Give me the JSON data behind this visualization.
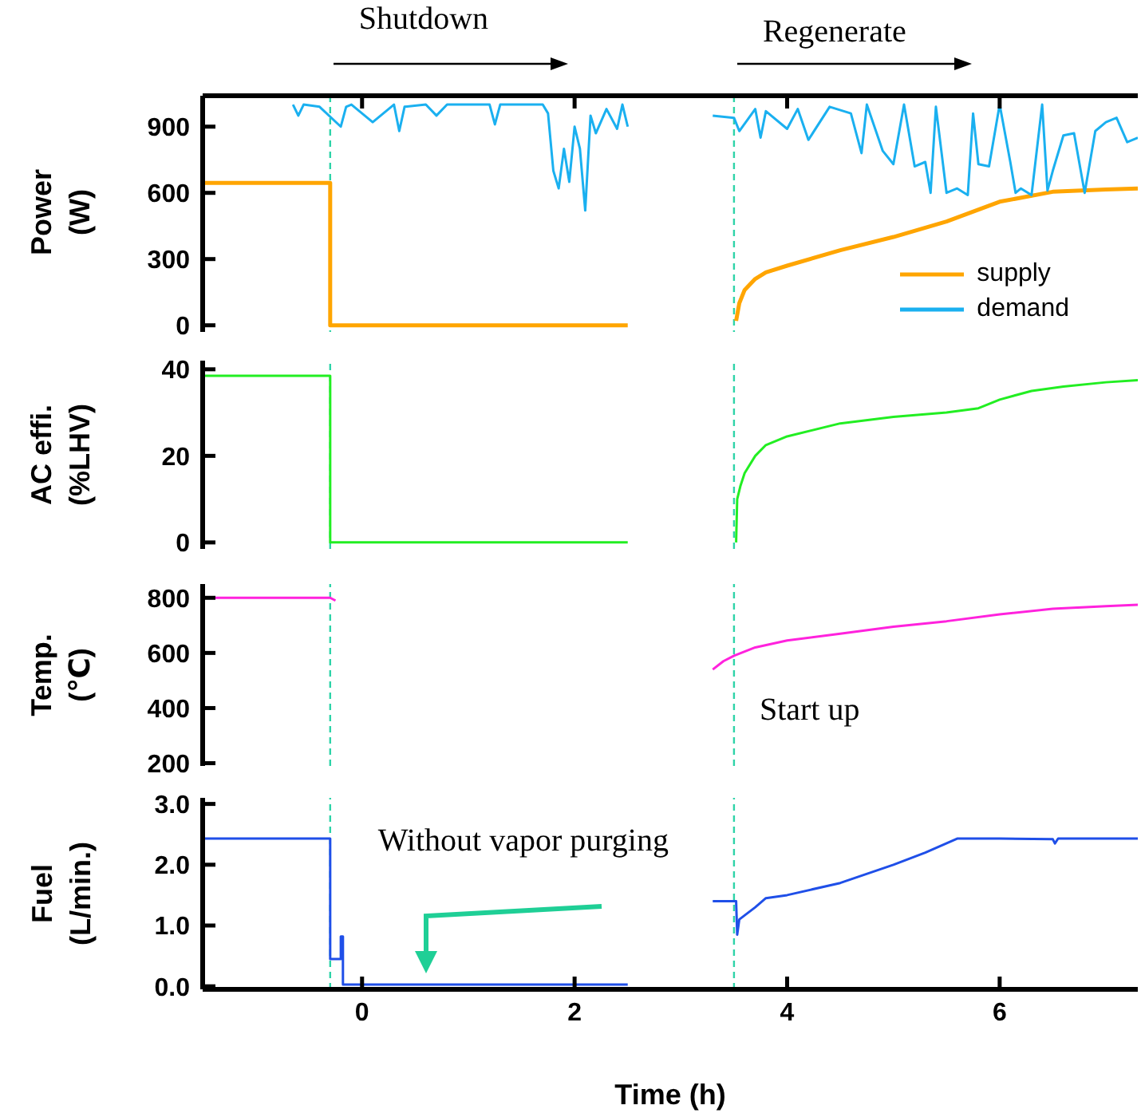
{
  "chart_data": [
    {
      "type": "line",
      "ylabel": "Power\n(W)",
      "xlim": [
        -1.5,
        7.3
      ],
      "xticks": [
        0,
        2,
        4,
        6
      ],
      "ylim": [
        -30,
        1040
      ],
      "yticks": [
        0,
        300,
        600,
        900
      ],
      "tick_labels": "y",
      "legend": "bottom right",
      "annotations": [
        "Shutdown",
        "Regenerate"
      ],
      "ref_lines": [
        {
          "axis": "x",
          "value": -0.3,
          "color": "#2ed3a8",
          "line_style": "dashed"
        },
        {
          "axis": "x",
          "value": 3.5,
          "color": "#2ed3a8",
          "line_style": "dashed"
        }
      ],
      "series": [
        {
          "name": "supply",
          "color": "#ffa500",
          "x": [
            -1.5,
            -0.3,
            -0.3,
            2.5,
            2.9,
            3.52,
            3.55,
            3.6,
            3.7,
            3.8,
            4.0,
            4.5,
            5.0,
            5.5,
            6.0,
            6.5,
            7.0,
            7.3
          ],
          "values": [
            645,
            645,
            0,
            0,
            null,
            20,
            100,
            160,
            210,
            240,
            270,
            340,
            400,
            470,
            560,
            605,
            615,
            620
          ]
        },
        {
          "name": "demand",
          "color": "#1ab0f0",
          "x": [
            -0.65,
            -0.6,
            -0.55,
            -0.4,
            -0.2,
            -0.15,
            -0.1,
            0.1,
            0.3,
            0.35,
            0.4,
            0.6,
            0.7,
            0.8,
            1.0,
            1.2,
            1.25,
            1.3,
            1.5,
            1.7,
            1.75,
            1.8,
            1.85,
            1.9,
            1.95,
            2.0,
            2.05,
            2.1,
            2.15,
            2.2,
            2.3,
            2.4,
            2.45,
            2.5,
            2.9,
            3.3,
            3.5,
            3.55,
            3.7,
            3.75,
            3.8,
            4.0,
            4.1,
            4.2,
            4.4,
            4.6,
            4.7,
            4.75,
            4.9,
            5.0,
            5.1,
            5.2,
            5.3,
            5.35,
            5.4,
            5.5,
            5.6,
            5.7,
            5.75,
            5.8,
            5.9,
            6.0,
            6.1,
            6.15,
            6.2,
            6.3,
            6.4,
            6.45,
            6.5,
            6.6,
            6.7,
            6.8,
            6.9,
            7.0,
            7.1,
            7.2,
            7.3
          ],
          "values": [
            1000,
            950,
            1000,
            990,
            900,
            990,
            1000,
            920,
            1000,
            880,
            990,
            1000,
            950,
            1000,
            1000,
            1000,
            910,
            1000,
            1000,
            1000,
            960,
            700,
            620,
            800,
            650,
            900,
            800,
            520,
            950,
            870,
            980,
            890,
            1000,
            900,
            null,
            950,
            940,
            880,
            980,
            850,
            970,
            890,
            980,
            840,
            990,
            960,
            780,
            1000,
            790,
            730,
            1000,
            720,
            740,
            600,
            990,
            600,
            620,
            590,
            960,
            730,
            720,
            1000,
            740,
            600,
            620,
            590,
            1000,
            610,
            700,
            860,
            870,
            600,
            880,
            920,
            940,
            830,
            850
          ]
        }
      ]
    },
    {
      "type": "line",
      "ylabel": "AC effi.\n(%LHV)",
      "xlim": [
        -1.5,
        7.3
      ],
      "xticks": [
        0,
        2,
        4,
        6
      ],
      "ylim": [
        -1.5,
        42
      ],
      "yticks": [
        0,
        20,
        40
      ],
      "tick_labels": "y",
      "ref_lines": [
        {
          "axis": "x",
          "value": -0.3,
          "color": "#2ed3a8",
          "line_style": "dashed"
        },
        {
          "axis": "x",
          "value": 3.5,
          "color": "#2ed3a8",
          "line_style": "dashed"
        }
      ],
      "series": [
        {
          "color": "#22ee22",
          "x": [
            -1.5,
            -0.3,
            -0.3,
            2.5,
            2.9,
            3.52,
            3.53,
            3.56,
            3.6,
            3.7,
            3.8,
            4.0,
            4.5,
            5.0,
            5.5,
            5.8,
            6.0,
            6.3,
            6.6,
            7.0,
            7.3
          ],
          "values": [
            38.5,
            38.5,
            0,
            0,
            null,
            0,
            10,
            13,
            16,
            20,
            22.5,
            24.5,
            27.5,
            29,
            30,
            31,
            33,
            35,
            36,
            37,
            37.5
          ]
        }
      ]
    },
    {
      "type": "line",
      "ylabel": "Temp.\n(℃)",
      "xlim": [
        -1.5,
        7.3
      ],
      "xticks": [
        0,
        2,
        4,
        6
      ],
      "ylim": [
        190,
        850
      ],
      "yticks": [
        200,
        400,
        600,
        800
      ],
      "tick_labels": "y",
      "annotations": [
        "Start up"
      ],
      "ref_lines": [
        {
          "axis": "x",
          "value": -0.3,
          "color": "#2ed3a8",
          "line_style": "dashed"
        },
        {
          "axis": "x",
          "value": 3.5,
          "color": "#2ed3a8",
          "line_style": "dashed"
        }
      ],
      "series": [
        {
          "color": "#ff22dd",
          "x": [
            -1.5,
            -0.3,
            -0.25,
            2.9,
            3.3,
            3.4,
            3.5,
            3.7,
            4.0,
            4.5,
            5.0,
            5.5,
            6.0,
            6.5,
            7.0,
            7.3
          ],
          "values": [
            800,
            800,
            790,
            null,
            540,
            570,
            590,
            620,
            645,
            670,
            695,
            715,
            740,
            760,
            770,
            775
          ]
        }
      ]
    },
    {
      "type": "line",
      "ylabel": "Fuel\n(L/min.)",
      "xlabel": "Time (h)",
      "xlim": [
        -1.5,
        7.3
      ],
      "xticks": [
        0,
        2,
        4,
        6
      ],
      "ylim": [
        -0.05,
        3.1
      ],
      "yticks": [
        {
          "value": 0,
          "label": "0.0"
        },
        {
          "value": 1,
          "label": "1.0"
        },
        {
          "value": 2,
          "label": "2.0"
        },
        {
          "value": 3,
          "label": "3.0"
        }
      ],
      "annotations": [
        "Without vapor purging"
      ],
      "ref_lines": [
        {
          "axis": "x",
          "value": -0.3,
          "color": "#2ed3a8",
          "line_style": "dashed"
        },
        {
          "axis": "x",
          "value": 3.5,
          "color": "#2ed3a8",
          "line_style": "dashed"
        }
      ],
      "series": [
        {
          "color": "#1f4fe8",
          "x": [
            -1.5,
            -0.3,
            -0.3,
            -0.2,
            -0.2,
            -0.18,
            -0.18,
            -0.15,
            2.5,
            2.9,
            3.3,
            3.52,
            3.53,
            3.55,
            3.7,
            3.8,
            4.0,
            4.5,
            5.0,
            5.3,
            5.6,
            6.0,
            6.5,
            6.52,
            6.55,
            7.3
          ],
          "values": [
            2.43,
            2.43,
            0.45,
            0.45,
            0.82,
            0.82,
            0.03,
            0.03,
            0.03,
            null,
            1.4,
            1.4,
            0.85,
            1.1,
            1.3,
            1.45,
            1.5,
            1.7,
            2.0,
            2.2,
            2.43,
            2.43,
            2.42,
            2.35,
            2.43,
            2.43
          ]
        }
      ]
    }
  ]
}
